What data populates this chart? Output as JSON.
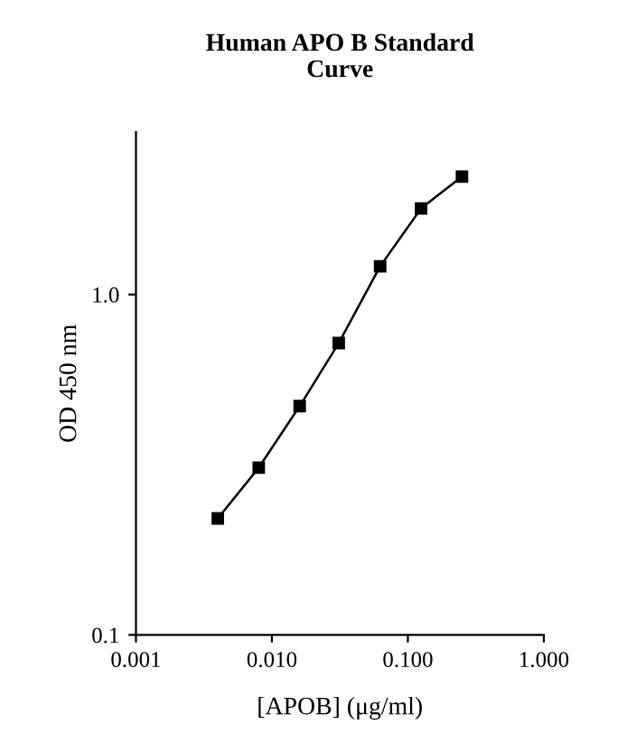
{
  "chart_data": {
    "type": "line",
    "title": "Human APO B Standard\nCurve",
    "xlabel": "[APOB] (μg/ml)",
    "ylabel": "OD 450 nm",
    "log": "xy",
    "x": [
      0.004,
      0.008,
      0.016,
      0.031,
      0.0625,
      0.125,
      0.25
    ],
    "series": [
      {
        "color": "#000000",
        "values": [
          0.22,
          0.31,
          0.47,
          0.72,
          1.21,
          1.79,
          2.22
        ]
      }
    ],
    "xlim": [
      0.001,
      1
    ],
    "ylim": [
      0.1,
      3
    ],
    "xticks": [
      {
        "value": 0.001,
        "label": "0.001"
      },
      {
        "value": 0.01,
        "label": "0.010"
      },
      {
        "value": 0.1,
        "label": "0.100"
      },
      {
        "value": 1,
        "label": "1.000"
      }
    ],
    "yticks": [
      0.1,
      {
        "value": 1,
        "label": "1.0"
      }
    ],
    "marker": "square",
    "line_style": "solid",
    "grid": false,
    "legend": false
  }
}
